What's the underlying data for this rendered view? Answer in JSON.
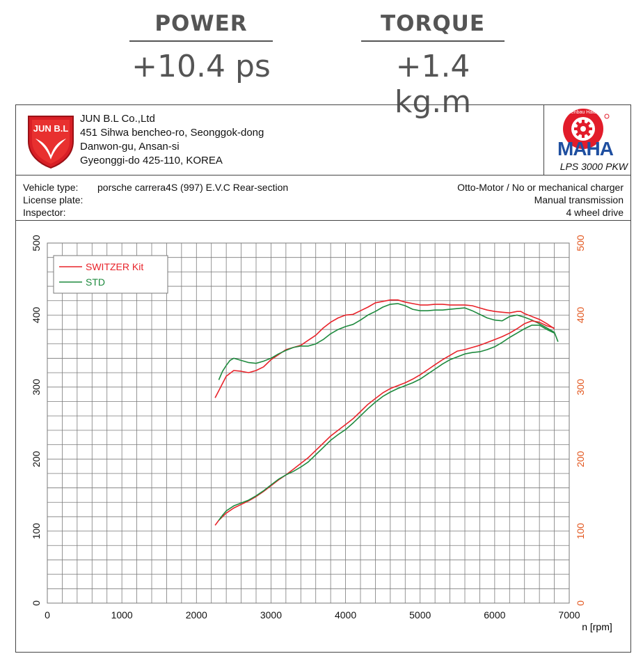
{
  "gains": {
    "power_title": "POWER",
    "power_value": "+10.4 ps",
    "torque_title": "TORQUE",
    "torque_value": "+1.4 kg.m"
  },
  "company": {
    "logo_text": "JUN B.L",
    "name": "JUN B.L Co.,Ltd",
    "address1": "451 Sihwa bencheo-ro, Seonggok-dong",
    "address2": "Danwon-gu, Ansan-si",
    "address3": "Gyeonggi-do 425-110, KOREA"
  },
  "maha": {
    "logo_text": "MAHA",
    "ring_text": "Maschinenbau Haldenwang",
    "model": "LPS 3000 PKW"
  },
  "vehicle": {
    "type_label": "Vehicle type:",
    "type_value": "porsche carrera4S (997) E.V.C Rear-section",
    "plate_label": "License plate:",
    "inspector_label": "Inspector:",
    "engine": "Otto-Motor / No or mechanical charger",
    "transmission": "Manual transmission",
    "drive": "4 wheel drive"
  },
  "colors": {
    "switzer": "#e8232a",
    "std": "#1e8a3e",
    "grid": "#7a7a7a",
    "right_axis": "#e2561e"
  },
  "chart_data": {
    "type": "line",
    "xlabel": "n [rpm]",
    "xlim": [
      0,
      7000
    ],
    "ylim": [
      0,
      500
    ],
    "y2lim": [
      0,
      500
    ],
    "x_ticks": [
      0,
      1000,
      2000,
      3000,
      4000,
      5000,
      6000,
      7000
    ],
    "y_ticks": [
      0,
      100,
      200,
      300,
      400,
      500
    ],
    "y2_ticks": [
      0,
      100,
      200,
      300,
      400,
      500
    ],
    "grid": true,
    "legend_position": "top-left",
    "series": [
      {
        "name": "SWITZER Kit",
        "curve": "upper",
        "color": "#e8232a",
        "x": [
          2250,
          2300,
          2400,
          2500,
          2600,
          2700,
          2800,
          2900,
          3000,
          3100,
          3200,
          3300,
          3400,
          3500,
          3600,
          3700,
          3800,
          3900,
          4000,
          4100,
          4200,
          4300,
          4400,
          4500,
          4600,
          4700,
          4800,
          4900,
          5000,
          5100,
          5200,
          5300,
          5400,
          5500,
          5600,
          5700,
          5800,
          5900,
          6000,
          6100,
          6200,
          6300,
          6350,
          6400,
          6500,
          6600,
          6700,
          6800
        ],
        "y": [
          285,
          295,
          315,
          323,
          322,
          320,
          323,
          328,
          338,
          345,
          352,
          355,
          358,
          365,
          372,
          382,
          390,
          396,
          400,
          401,
          406,
          411,
          417,
          419,
          421,
          421,
          418,
          416,
          414,
          414,
          415,
          415,
          414,
          414,
          414,
          413,
          410,
          407,
          405,
          404,
          403,
          405,
          405,
          402,
          398,
          394,
          388,
          381
        ]
      },
      {
        "name": "STD",
        "curve": "upper",
        "color": "#1e8a3e",
        "x": [
          2300,
          2350,
          2400,
          2450,
          2500,
          2600,
          2700,
          2800,
          2900,
          3000,
          3100,
          3200,
          3300,
          3400,
          3500,
          3600,
          3700,
          3800,
          3900,
          4000,
          4100,
          4200,
          4300,
          4400,
          4500,
          4600,
          4700,
          4800,
          4900,
          5000,
          5100,
          5200,
          5300,
          5400,
          5500,
          5600,
          5700,
          5800,
          5900,
          6000,
          6100,
          6200,
          6300,
          6400,
          6500,
          6600,
          6700,
          6800,
          6850
        ],
        "y": [
          310,
          322,
          330,
          337,
          340,
          337,
          334,
          333,
          336,
          340,
          346,
          351,
          355,
          357,
          357,
          360,
          366,
          374,
          380,
          384,
          387,
          393,
          400,
          405,
          411,
          415,
          416,
          413,
          408,
          406,
          406,
          407,
          407,
          408,
          409,
          410,
          406,
          401,
          396,
          393,
          392,
          398,
          400,
          397,
          393,
          388,
          382,
          376,
          363
        ]
      },
      {
        "name": "SWITZER Kit",
        "curve": "lower",
        "color": "#e8232a",
        "x": [
          2250,
          2300,
          2400,
          2500,
          2600,
          2700,
          2800,
          2900,
          3000,
          3100,
          3200,
          3300,
          3400,
          3500,
          3600,
          3700,
          3800,
          3900,
          4000,
          4100,
          4200,
          4300,
          4400,
          4500,
          4600,
          4700,
          4800,
          4900,
          5000,
          5100,
          5200,
          5300,
          5400,
          5500,
          5600,
          5700,
          5800,
          5900,
          6000,
          6100,
          6200,
          6300,
          6400,
          6500,
          6600,
          6700,
          6800
        ],
        "y": [
          108,
          115,
          125,
          132,
          137,
          142,
          148,
          155,
          163,
          171,
          178,
          186,
          194,
          202,
          212,
          222,
          232,
          240,
          248,
          256,
          266,
          276,
          284,
          292,
          298,
          302,
          306,
          311,
          317,
          324,
          331,
          338,
          344,
          350,
          352,
          355,
          358,
          362,
          366,
          370,
          375,
          381,
          388,
          392,
          390,
          385,
          382
        ]
      },
      {
        "name": "STD",
        "curve": "lower",
        "color": "#1e8a3e",
        "x": [
          2300,
          2350,
          2400,
          2500,
          2600,
          2700,
          2800,
          2900,
          3000,
          3100,
          3200,
          3300,
          3400,
          3500,
          3600,
          3700,
          3800,
          3900,
          4000,
          4100,
          4200,
          4300,
          4400,
          4500,
          4600,
          4700,
          4800,
          4900,
          5000,
          5100,
          5200,
          5300,
          5400,
          5500,
          5600,
          5700,
          5800,
          5900,
          6000,
          6100,
          6200,
          6300,
          6400,
          6500,
          6600,
          6700,
          6800
        ],
        "y": [
          115,
          122,
          128,
          135,
          139,
          143,
          149,
          156,
          164,
          172,
          178,
          183,
          189,
          196,
          206,
          216,
          226,
          234,
          241,
          250,
          260,
          270,
          279,
          287,
          293,
          298,
          302,
          306,
          311,
          318,
          325,
          332,
          338,
          342,
          346,
          348,
          349,
          352,
          356,
          362,
          369,
          375,
          381,
          386,
          386,
          380,
          375
        ]
      }
    ]
  }
}
